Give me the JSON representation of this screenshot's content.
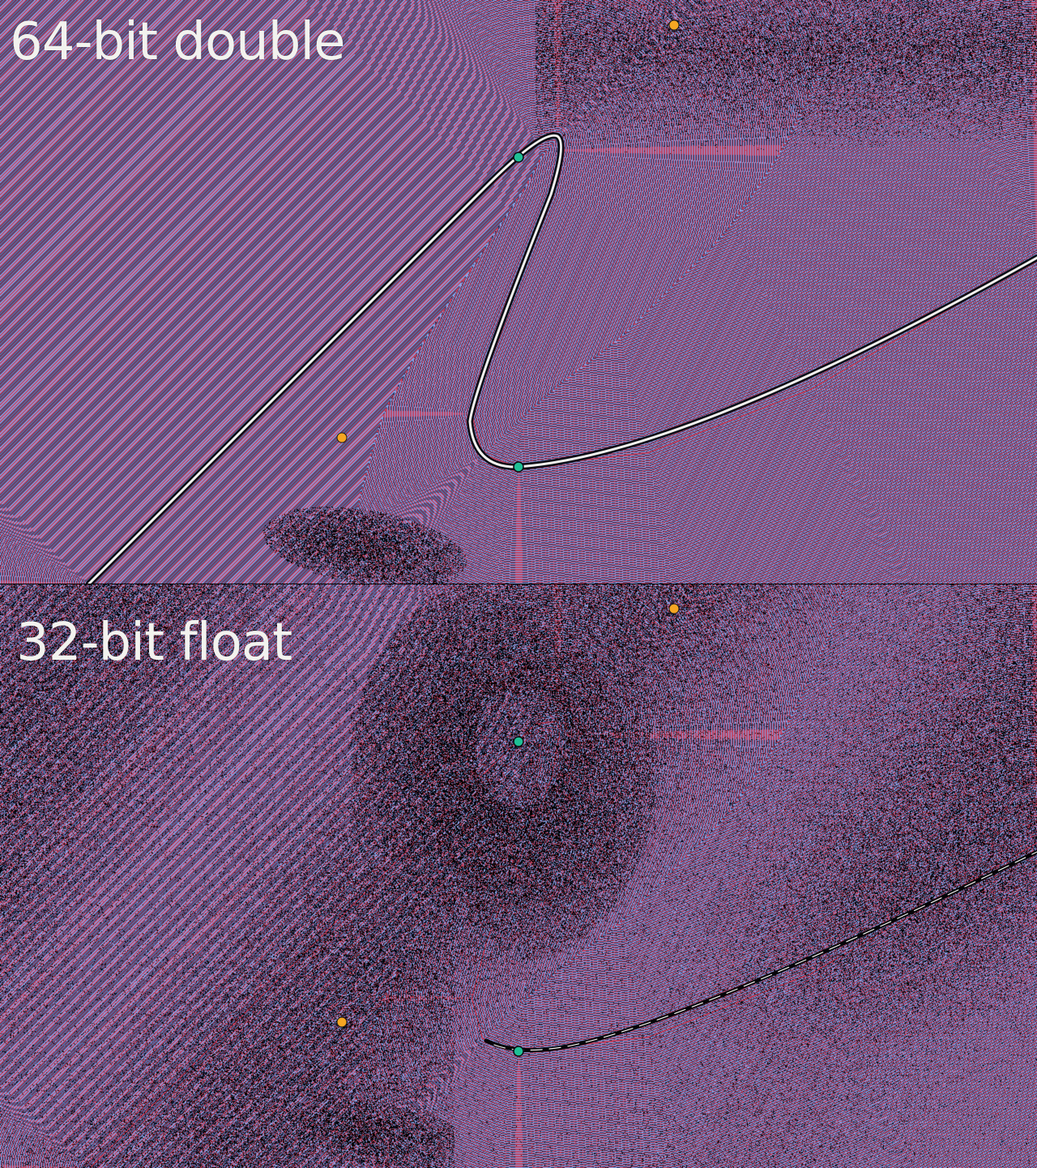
{
  "panels": [
    {
      "label": "64-bit double",
      "precision": "double"
    },
    {
      "label": "32-bit float",
      "precision": "float"
    }
  ],
  "colors": {
    "stripe_red": "#c0415f",
    "stripe_blue": "#8aa3e6",
    "stripe_dark": "#262f58",
    "control_point": "#f5a623",
    "curve_point": "#1fbf95",
    "curve": "#f2f2ee",
    "noise_black": "#000000",
    "label_text": "#f2f2ee"
  }
}
